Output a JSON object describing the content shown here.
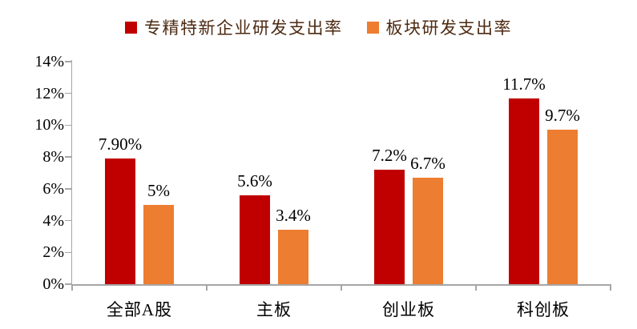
{
  "legend": {
    "items": [
      {
        "label": "专精特新企业研发支出率",
        "color": "#C00000"
      },
      {
        "label": "板块研发支出率",
        "color": "#ED7D31"
      }
    ],
    "text_color": "#4D2A12"
  },
  "chart_data": {
    "type": "bar",
    "title": "",
    "xlabel": "",
    "ylabel": "",
    "categories": [
      "全部A股",
      "主板",
      "创业板",
      "科创板"
    ],
    "series": [
      {
        "name": "专精特新企业研发支出率",
        "color": "#C00000",
        "values": [
          7.9,
          5.6,
          7.2,
          11.7
        ],
        "data_labels": [
          "7.90%",
          "5.6%",
          "7.2%",
          "11.7%"
        ]
      },
      {
        "name": "板块研发支出率",
        "color": "#ED7D31",
        "values": [
          5.0,
          3.4,
          6.7,
          9.7
        ],
        "data_labels": [
          "5%",
          "3.4%",
          "6.7%",
          "9.7%"
        ]
      }
    ],
    "ylim": [
      0,
      14
    ],
    "y_tick_step": 2,
    "y_tick_labels": [
      "0%",
      "2%",
      "4%",
      "6%",
      "8%",
      "10%",
      "12%",
      "14%"
    ],
    "grid": false,
    "legend_position": "top",
    "axis_color": "#A6A6A6",
    "label_color": "#000000",
    "background_color": "#FFFFFF"
  }
}
